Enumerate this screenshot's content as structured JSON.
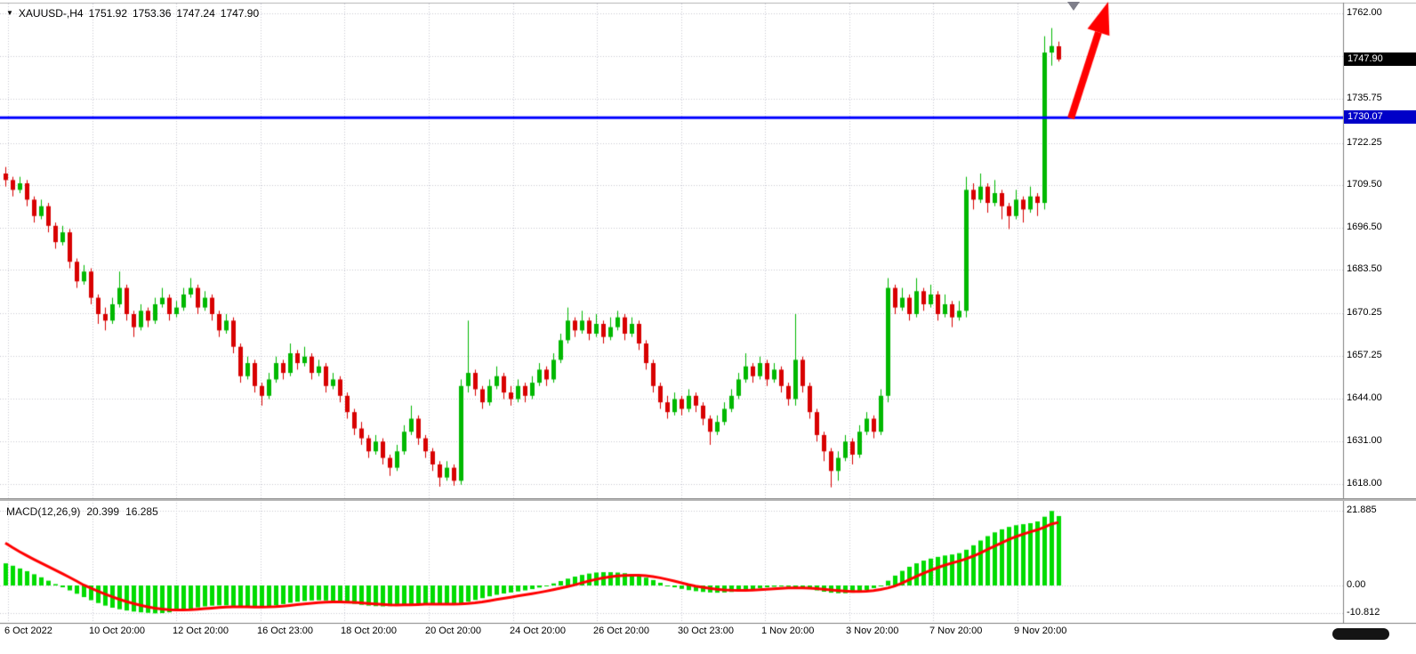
{
  "header": {
    "dropdown_icon": "▼",
    "symbol_period": "XAUUSD-,H4",
    "open": "1751.92",
    "high": "1753.36",
    "low": "1747.24",
    "close": "1747.90"
  },
  "chart_data": {
    "type": "candlestick",
    "title": "XAUUSD- H4 with MACD(12,26,9)",
    "price_axis": {
      "ticks": [
        {
          "label": "1762.00",
          "value": 1762.0
        },
        {
          "label": "",
          "value": 1749.0
        },
        {
          "label": "1735.75",
          "value": 1735.75
        },
        {
          "label": "1722.25",
          "value": 1722.25
        },
        {
          "label": "1709.50",
          "value": 1709.5
        },
        {
          "label": "1696.50",
          "value": 1696.5
        },
        {
          "label": "1683.50",
          "value": 1683.5
        },
        {
          "label": "1670.25",
          "value": 1670.25
        },
        {
          "label": "1657.25",
          "value": 1657.25
        },
        {
          "label": "1644.00",
          "value": 1644.0
        },
        {
          "label": "1631.00",
          "value": 1631.0
        },
        {
          "label": "1618.00",
          "value": 1618.0
        }
      ]
    },
    "current_price": {
      "label": "1747.90",
      "value": 1747.9
    },
    "horizontal_line": {
      "label": "1730.07",
      "value": 1730.07
    },
    "time_axis": {
      "labels": [
        "6 Oct 2022",
        "10 Oct 20:00",
        "12 Oct 20:00",
        "16 Oct 23:00",
        "18 Oct 20:00",
        "20 Oct 20:00",
        "24 Oct 20:00",
        "26 Oct 20:00",
        "30 Oct 23:00",
        "1 Nov 20:00",
        "3 Nov 20:00",
        "7 Nov 20:00",
        "9 Nov 20:00"
      ]
    },
    "candles": [
      [
        1713,
        1715,
        1709,
        1711
      ],
      [
        1711,
        1712,
        1706,
        1708
      ],
      [
        1708,
        1712,
        1707,
        1710
      ],
      [
        1710,
        1711,
        1703,
        1705
      ],
      [
        1705,
        1706,
        1698,
        1700
      ],
      [
        1700,
        1705,
        1699,
        1703
      ],
      [
        1703,
        1704,
        1695,
        1697
      ],
      [
        1697,
        1698,
        1690,
        1692
      ],
      [
        1692,
        1697,
        1691,
        1695
      ],
      [
        1695,
        1696,
        1684,
        1686
      ],
      [
        1686,
        1687,
        1678,
        1680
      ],
      [
        1680,
        1685,
        1679,
        1683
      ],
      [
        1683,
        1684,
        1673,
        1675
      ],
      [
        1675,
        1676,
        1667,
        1670
      ],
      [
        1670,
        1672,
        1665,
        1668
      ],
      [
        1668,
        1675,
        1667,
        1673
      ],
      [
        1673,
        1683,
        1672,
        1678
      ],
      [
        1678,
        1679,
        1668,
        1670
      ],
      [
        1670,
        1671,
        1663,
        1666
      ],
      [
        1666,
        1673,
        1665,
        1671
      ],
      [
        1671,
        1672,
        1666,
        1668
      ],
      [
        1668,
        1675,
        1667,
        1673
      ],
      [
        1673,
        1678,
        1672,
        1675
      ],
      [
        1675,
        1676,
        1668,
        1670
      ],
      [
        1670,
        1674,
        1669,
        1672
      ],
      [
        1672,
        1678,
        1671,
        1676
      ],
      [
        1676,
        1681,
        1675,
        1678
      ],
      [
        1678,
        1679,
        1670,
        1672
      ],
      [
        1672,
        1677,
        1671,
        1675
      ],
      [
        1675,
        1676,
        1668,
        1670
      ],
      [
        1670,
        1671,
        1663,
        1665
      ],
      [
        1665,
        1670,
        1664,
        1668
      ],
      [
        1668,
        1669,
        1658,
        1660
      ],
      [
        1660,
        1661,
        1649,
        1651
      ],
      [
        1651,
        1657,
        1650,
        1655
      ],
      [
        1655,
        1656,
        1646,
        1648
      ],
      [
        1648,
        1649,
        1642,
        1645
      ],
      [
        1645,
        1652,
        1644,
        1650
      ],
      [
        1650,
        1657,
        1649,
        1655
      ],
      [
        1655,
        1656,
        1650,
        1652
      ],
      [
        1652,
        1661,
        1651,
        1658
      ],
      [
        1658,
        1659,
        1653,
        1655
      ],
      [
        1655,
        1660,
        1654,
        1657
      ],
      [
        1657,
        1658,
        1650,
        1652
      ],
      [
        1652,
        1656,
        1651,
        1654
      ],
      [
        1654,
        1655,
        1646,
        1648
      ],
      [
        1648,
        1652,
        1647,
        1650
      ],
      [
        1650,
        1651,
        1643,
        1645
      ],
      [
        1645,
        1646,
        1638,
        1640
      ],
      [
        1640,
        1641,
        1633,
        1635
      ],
      [
        1635,
        1637,
        1630,
        1632
      ],
      [
        1632,
        1633,
        1626,
        1628
      ],
      [
        1628,
        1633,
        1627,
        1631
      ],
      [
        1631,
        1632,
        1624,
        1626
      ],
      [
        1626,
        1627,
        1620.5,
        1623
      ],
      [
        1623,
        1630,
        1622,
        1628
      ],
      [
        1628,
        1636,
        1627,
        1634
      ],
      [
        1634,
        1642,
        1633,
        1638
      ],
      [
        1638,
        1639,
        1630,
        1632
      ],
      [
        1632,
        1633,
        1626,
        1628
      ],
      [
        1628,
        1629,
        1622,
        1624
      ],
      [
        1624,
        1625,
        1617.2,
        1620
      ],
      [
        1620,
        1625,
        1619,
        1623
      ],
      [
        1623,
        1624,
        1617.5,
        1619
      ],
      [
        1619,
        1650,
        1617.8,
        1648
      ],
      [
        1648,
        1668,
        1646,
        1652
      ],
      [
        1652,
        1653,
        1645,
        1647
      ],
      [
        1647,
        1648,
        1641,
        1643
      ],
      [
        1643,
        1650,
        1642,
        1648
      ],
      [
        1648,
        1654,
        1647,
        1651
      ],
      [
        1651,
        1652,
        1644,
        1646
      ],
      [
        1646,
        1648,
        1642,
        1644
      ],
      [
        1644,
        1650,
        1643,
        1648
      ],
      [
        1648,
        1649,
        1643,
        1645
      ],
      [
        1645,
        1651,
        1644,
        1649
      ],
      [
        1649,
        1655,
        1648,
        1653
      ],
      [
        1653,
        1654,
        1648,
        1650
      ],
      [
        1650,
        1658,
        1649,
        1656
      ],
      [
        1656,
        1664,
        1655,
        1662
      ],
      [
        1662,
        1672,
        1661,
        1668
      ],
      [
        1668,
        1669,
        1663,
        1665
      ],
      [
        1665,
        1671,
        1664,
        1668
      ],
      [
        1668,
        1669,
        1662,
        1664
      ],
      [
        1664,
        1670,
        1663,
        1667
      ],
      [
        1667,
        1668,
        1661,
        1663
      ],
      [
        1663,
        1669,
        1662,
        1666
      ],
      [
        1666,
        1671,
        1665,
        1669
      ],
      [
        1669,
        1670,
        1662,
        1664
      ],
      [
        1664,
        1669,
        1663,
        1667
      ],
      [
        1667,
        1668,
        1659,
        1661
      ],
      [
        1661,
        1662,
        1653,
        1655
      ],
      [
        1655,
        1656,
        1646,
        1648
      ],
      [
        1648,
        1649,
        1641,
        1643
      ],
      [
        1643,
        1645,
        1638,
        1640
      ],
      [
        1640,
        1646,
        1639,
        1644
      ],
      [
        1644,
        1645,
        1639,
        1641
      ],
      [
        1641,
        1647,
        1640,
        1645
      ],
      [
        1645,
        1646,
        1640,
        1642
      ],
      [
        1642,
        1643,
        1636,
        1638
      ],
      [
        1638,
        1639,
        1630,
        1634
      ],
      [
        1634,
        1639,
        1633,
        1637
      ],
      [
        1637,
        1643,
        1636,
        1641
      ],
      [
        1641,
        1647,
        1640,
        1645
      ],
      [
        1645,
        1652,
        1644,
        1650
      ],
      [
        1650,
        1658,
        1649,
        1654
      ],
      [
        1654,
        1655,
        1649,
        1651
      ],
      [
        1651,
        1657,
        1650,
        1655
      ],
      [
        1655,
        1656,
        1648,
        1650
      ],
      [
        1650,
        1655,
        1649,
        1653
      ],
      [
        1653,
        1654,
        1646,
        1648
      ],
      [
        1648,
        1649,
        1642,
        1644
      ],
      [
        1644,
        1670,
        1642,
        1656
      ],
      [
        1656,
        1657,
        1646,
        1648
      ],
      [
        1648,
        1649,
        1638,
        1640
      ],
      [
        1640,
        1641,
        1631,
        1633
      ],
      [
        1633,
        1634,
        1625,
        1628
      ],
      [
        1628,
        1629,
        1617,
        1622
      ],
      [
        1622,
        1628,
        1619,
        1626
      ],
      [
        1626,
        1633,
        1625,
        1631
      ],
      [
        1631,
        1632,
        1624,
        1627
      ],
      [
        1627,
        1636,
        1626,
        1634
      ],
      [
        1634,
        1640,
        1633,
        1638
      ],
      [
        1638,
        1639,
        1632,
        1634
      ],
      [
        1634,
        1647,
        1633,
        1645
      ],
      [
        1645,
        1681,
        1643,
        1678
      ],
      [
        1678,
        1679,
        1670,
        1672
      ],
      [
        1672,
        1678,
        1671,
        1675
      ],
      [
        1675,
        1676,
        1668,
        1670
      ],
      [
        1670,
        1681,
        1669,
        1677
      ],
      [
        1677,
        1678,
        1671,
        1673
      ],
      [
        1673,
        1679,
        1672,
        1676
      ],
      [
        1676,
        1677,
        1668,
        1670
      ],
      [
        1670,
        1676,
        1669,
        1673
      ],
      [
        1673,
        1674,
        1666,
        1669
      ],
      [
        1669,
        1674,
        1668,
        1671
      ],
      [
        1671,
        1712,
        1669,
        1708
      ],
      [
        1708,
        1710,
        1702,
        1705
      ],
      [
        1705,
        1713,
        1704,
        1709
      ],
      [
        1709,
        1710,
        1701,
        1704
      ],
      [
        1704,
        1711,
        1703,
        1707
      ],
      [
        1707,
        1708,
        1699,
        1703
      ],
      [
        1703,
        1704,
        1696,
        1700
      ],
      [
        1700,
        1708,
        1699,
        1705
      ],
      [
        1705,
        1706,
        1698,
        1702
      ],
      [
        1702,
        1709,
        1701,
        1706
      ],
      [
        1706,
        1707,
        1700,
        1704
      ],
      [
        1704,
        1755,
        1702,
        1750
      ],
      [
        1750,
        1757.5,
        1746,
        1752
      ],
      [
        1751.92,
        1753.36,
        1747.24,
        1747.9
      ]
    ],
    "macd": {
      "label": "MACD(12,26,9)",
      "macd_value": "20.399",
      "signal_value": "16.285",
      "signal_period": 9,
      "signal_seed": 14,
      "axis": [
        {
          "label": "21.885",
          "value": 21.885
        },
        {
          "label": "0.00",
          "value": 0
        },
        {
          "label": "-10.812",
          "value": -10.812
        }
      ],
      "histogram": [
        6.5,
        5.8,
        5.0,
        4.2,
        3.3,
        2.4,
        1.4,
        0.4,
        -0.7,
        -1.9,
        -3.2,
        -4.5,
        -5.7,
        -6.8,
        -7.8,
        -8.6,
        -9.2,
        -9.7,
        -10.1,
        -10.4,
        -10.6,
        -10.8,
        -10.7,
        -10.4,
        -10.0,
        -9.5,
        -9.0,
        -8.5,
        -8.1,
        -7.8,
        -7.7,
        -7.7,
        -7.9,
        -8.2,
        -8.4,
        -8.5,
        -8.4,
        -8.1,
        -7.7,
        -7.2,
        -6.7,
        -6.3,
        -6.0,
        -5.8,
        -5.7,
        -5.8,
        -6.0,
        -6.3,
        -6.7,
        -7.1,
        -7.5,
        -7.8,
        -8.0,
        -8.1,
        -8.0,
        -7.8,
        -7.5,
        -7.2,
        -7.0,
        -6.9,
        -7.0,
        -7.2,
        -7.4,
        -7.3,
        -6.9,
        -6.3,
        -5.6,
        -4.9,
        -4.2,
        -3.6,
        -3.1,
        -2.7,
        -2.3,
        -1.9,
        -1.4,
        -0.8,
        -0.1,
        0.6,
        1.3,
        2.0,
        2.6,
        3.1,
        3.5,
        3.8,
        3.9,
        3.9,
        3.8,
        3.6,
        3.3,
        2.9,
        2.3,
        1.6,
        0.8,
        0.0,
        -0.7,
        -1.3,
        -1.8,
        -2.2,
        -2.5,
        -2.7,
        -2.8,
        -2.7,
        -2.5,
        -2.2,
        -1.8,
        -1.4,
        -1.0,
        -0.7,
        -0.5,
        -0.4,
        -0.5,
        -0.7,
        -1.0,
        -1.4,
        -1.9,
        -2.4,
        -2.8,
        -3.0,
        -3.0,
        -2.8,
        -2.4,
        -1.8,
        -1.0,
        0.0,
        1.4,
        2.9,
        4.3,
        5.5,
        6.5,
        7.3,
        7.9,
        8.4,
        8.8,
        9.1,
        9.5,
        10.5,
        11.8,
        13.2,
        14.5,
        15.6,
        16.5,
        17.2,
        17.7,
        18.0,
        18.3,
        18.8,
        20.2,
        21.885,
        20.399
      ]
    },
    "colors": {
      "bull": "#00B800",
      "bear": "#D80000",
      "macd_histogram": "#00DB00",
      "signal_line": "#FF0000",
      "hline": "#0000FF",
      "arrow": "#FF0000",
      "grid": "#c9c9d4"
    },
    "annotation_arrow": {
      "from": [
        1204,
        133
      ],
      "to": [
        1246,
        2
      ]
    }
  }
}
